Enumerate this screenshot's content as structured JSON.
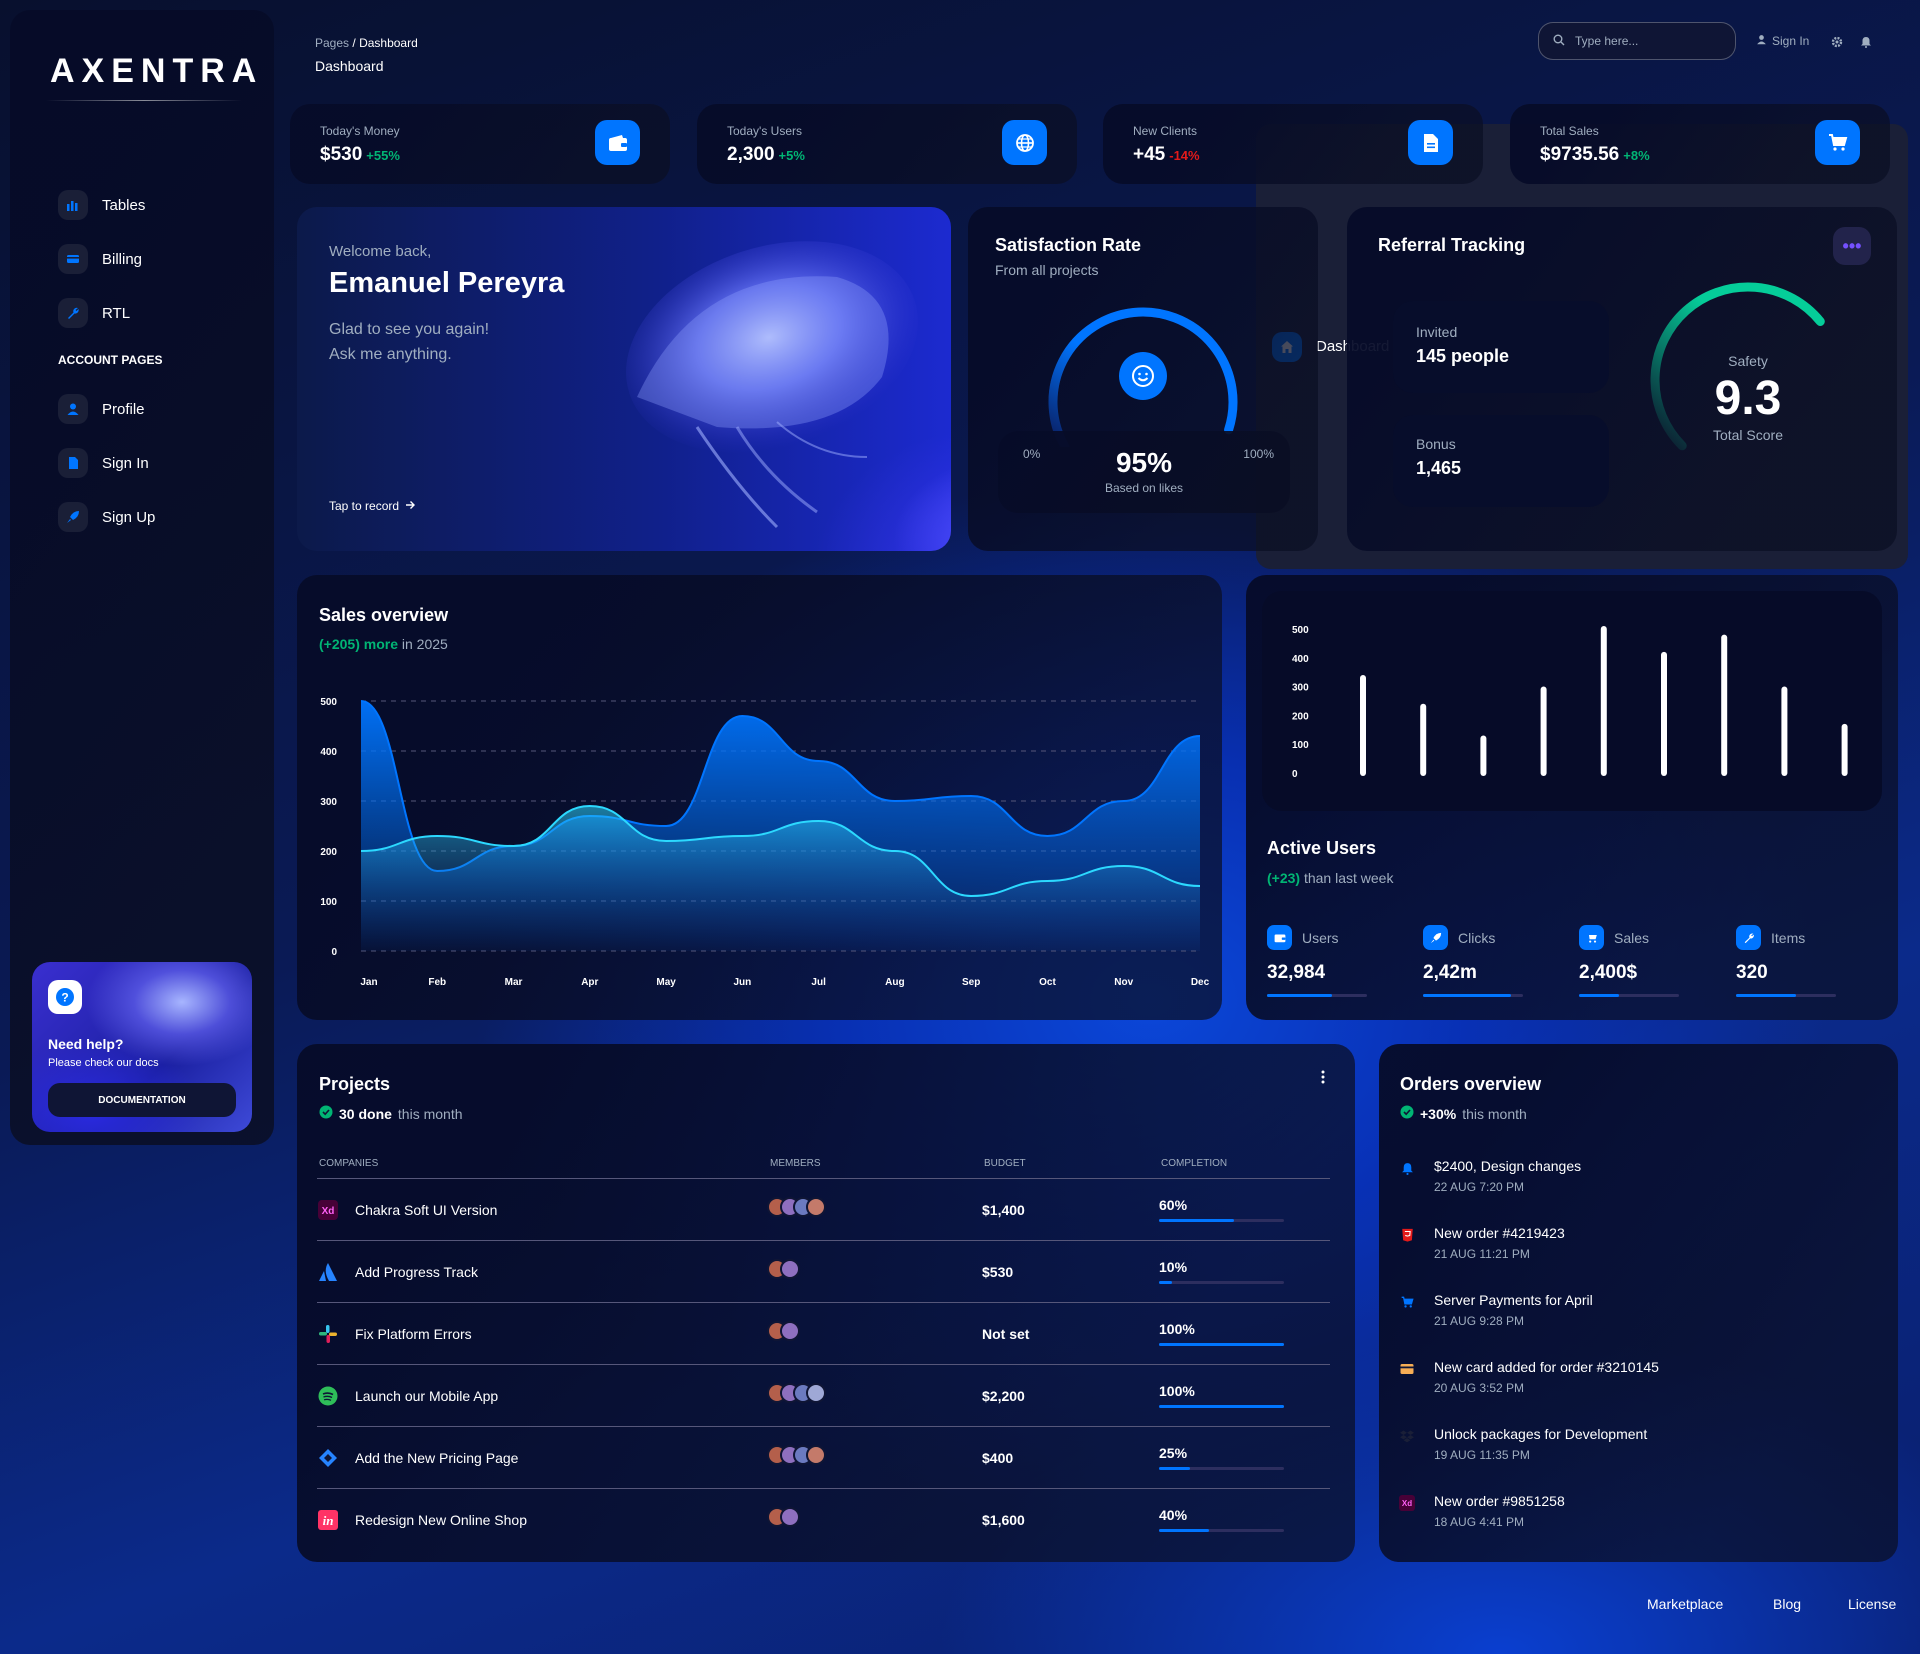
{
  "brand": "AXENTRA",
  "sidebar": {
    "items": [
      {
        "label": "Dashboard",
        "icon": "home-icon",
        "active": true
      },
      {
        "label": "Tables",
        "icon": "chart-icon"
      },
      {
        "label": "Billing",
        "icon": "credit-card-icon"
      },
      {
        "label": "RTL",
        "icon": "wrench-icon"
      }
    ],
    "section_label": "ACCOUNT PAGES",
    "account_items": [
      {
        "label": "Profile",
        "icon": "person-icon"
      },
      {
        "label": "Sign In",
        "icon": "document-icon"
      },
      {
        "label": "Sign Up",
        "icon": "rocket-icon"
      }
    ],
    "help": {
      "title": "Need help?",
      "subtitle": "Please check our docs",
      "button": "DOCUMENTATION"
    }
  },
  "topbar": {
    "breadcrumb_root": "Pages",
    "breadcrumb_sep": "/",
    "breadcrumb_current": "Dashboard",
    "page_title": "Dashboard",
    "search_placeholder": "Type here...",
    "signin_label": "Sign In"
  },
  "stats": [
    {
      "label": "Today's Money",
      "value": "$530",
      "change": "+55%",
      "trend": "up",
      "icon": "wallet-icon"
    },
    {
      "label": "Today's Users",
      "value": "2,300",
      "change": "+5%",
      "trend": "up",
      "icon": "globe-icon"
    },
    {
      "label": "New Clients",
      "value": "+45",
      "change": "-14%",
      "trend": "down",
      "icon": "document-icon"
    },
    {
      "label": "Total Sales",
      "value": "$9735.56",
      "change": "+8%",
      "trend": "up",
      "icon": "cart-icon"
    }
  ],
  "welcome": {
    "greeting": "Welcome back,",
    "name": "Emanuel Pereyra",
    "line1": "Glad to see you again!",
    "line2": "Ask me anything.",
    "cta": "Tap to record"
  },
  "satisfaction": {
    "title": "Satisfaction Rate",
    "subtitle": "From all projects",
    "min_label": "0%",
    "max_label": "100%",
    "value_label": "95%",
    "value": 95,
    "caption": "Based on likes"
  },
  "referral": {
    "title": "Referral Tracking",
    "invited_label": "Invited",
    "invited_value": "145 people",
    "bonus_label": "Bonus",
    "bonus_value": "1,465",
    "gauge_label": "Safety",
    "gauge_value": "9.3",
    "gauge_caption": "Total Score",
    "score": 9.3,
    "score_max": 10
  },
  "sales_overview": {
    "title": "Sales overview",
    "highlight": "(+205) more",
    "suffix": "in 2025"
  },
  "active_users": {
    "title": "Active Users",
    "highlight": "(+23)",
    "suffix": "than last week",
    "metrics": [
      {
        "label": "Users",
        "value": "32,984",
        "progress": 0.65,
        "icon": "wallet-icon"
      },
      {
        "label": "Clicks",
        "value": "2,42m",
        "progress": 0.88,
        "icon": "rocket-icon"
      },
      {
        "label": "Sales",
        "value": "2,400$",
        "progress": 0.4,
        "icon": "cart-icon"
      },
      {
        "label": "Items",
        "value": "320",
        "progress": 0.6,
        "icon": "wrench-icon"
      }
    ]
  },
  "chart_data": [
    {
      "type": "area",
      "title": "Sales overview",
      "categories": [
        "Jan",
        "Feb",
        "Mar",
        "Apr",
        "May",
        "Jun",
        "Jul",
        "Aug",
        "Sep",
        "Oct",
        "Nov",
        "Dec"
      ],
      "ylim": [
        0,
        500
      ],
      "yticks": [
        0,
        100,
        200,
        300,
        400,
        500
      ],
      "grid": true,
      "series": [
        {
          "values": [
            500,
            160,
            210,
            270,
            250,
            470,
            380,
            300,
            310,
            230,
            300,
            430
          ]
        },
        {
          "values": [
            200,
            230,
            210,
            290,
            220,
            230,
            260,
            200,
            110,
            140,
            170,
            130
          ]
        }
      ]
    },
    {
      "type": "bar",
      "ylim": [
        0,
        500
      ],
      "yticks": [
        0,
        100,
        200,
        300,
        400,
        500
      ],
      "values": [
        330,
        230,
        120,
        290,
        500,
        410,
        470,
        290,
        160
      ]
    }
  ],
  "projects": {
    "title": "Projects",
    "subtitle_bold": "30 done",
    "subtitle_rest": "this month",
    "columns": [
      "COMPANIES",
      "MEMBERS",
      "BUDGET",
      "COMPLETION"
    ],
    "rows": [
      {
        "name": "Chakra Soft UI Version",
        "logo": "xd-logo-icon",
        "members": 4,
        "budget": "$1,400",
        "completion": "60%",
        "pct": 0.6
      },
      {
        "name": "Add Progress Track",
        "logo": "atlassian-logo-icon",
        "members": 2,
        "budget": "$530",
        "completion": "10%",
        "pct": 0.1
      },
      {
        "name": "Fix Platform Errors",
        "logo": "slack-logo-icon",
        "members": 2,
        "budget": "Not set",
        "completion": "100%",
        "pct": 1.0
      },
      {
        "name": "Launch our Mobile App",
        "logo": "spotify-logo-icon",
        "members": 4,
        "budget": "$2,200",
        "completion": "100%",
        "pct": 1.0
      },
      {
        "name": "Add the New Pricing Page",
        "logo": "jira-logo-icon",
        "members": 4,
        "budget": "$400",
        "completion": "25%",
        "pct": 0.25
      },
      {
        "name": "Redesign New Online Shop",
        "logo": "invision-logo-icon",
        "members": 2,
        "budget": "$1,600",
        "completion": "40%",
        "pct": 0.4
      }
    ]
  },
  "orders": {
    "title": "Orders overview",
    "subtitle_bold": "+30%",
    "subtitle_rest": "this month",
    "items": [
      {
        "title": "$2400, Design changes",
        "date": "22 AUG 7:20 PM",
        "icon": "bell-icon"
      },
      {
        "title": "New order #4219423",
        "date": "21 AUG 11:21 PM",
        "icon": "html5-icon"
      },
      {
        "title": "Server Payments for April",
        "date": "21 AUG 9:28 PM",
        "icon": "cart-icon"
      },
      {
        "title": "New card added for order #3210145",
        "date": "20 AUG 3:52 PM",
        "icon": "credit-card-icon"
      },
      {
        "title": "Unlock packages for Development",
        "date": "19 AUG 11:35 PM",
        "icon": "dropbox-icon"
      },
      {
        "title": "New order #9851258",
        "date": "18 AUG 4:41 PM",
        "icon": "xd-logo-icon"
      }
    ]
  },
  "footer": {
    "links": [
      "Marketplace",
      "Blog",
      "License"
    ]
  },
  "colors": {
    "accent": "#0075ff",
    "positive": "#01b574",
    "negative": "#e31a1a",
    "gauge_green": "#05cd99"
  }
}
